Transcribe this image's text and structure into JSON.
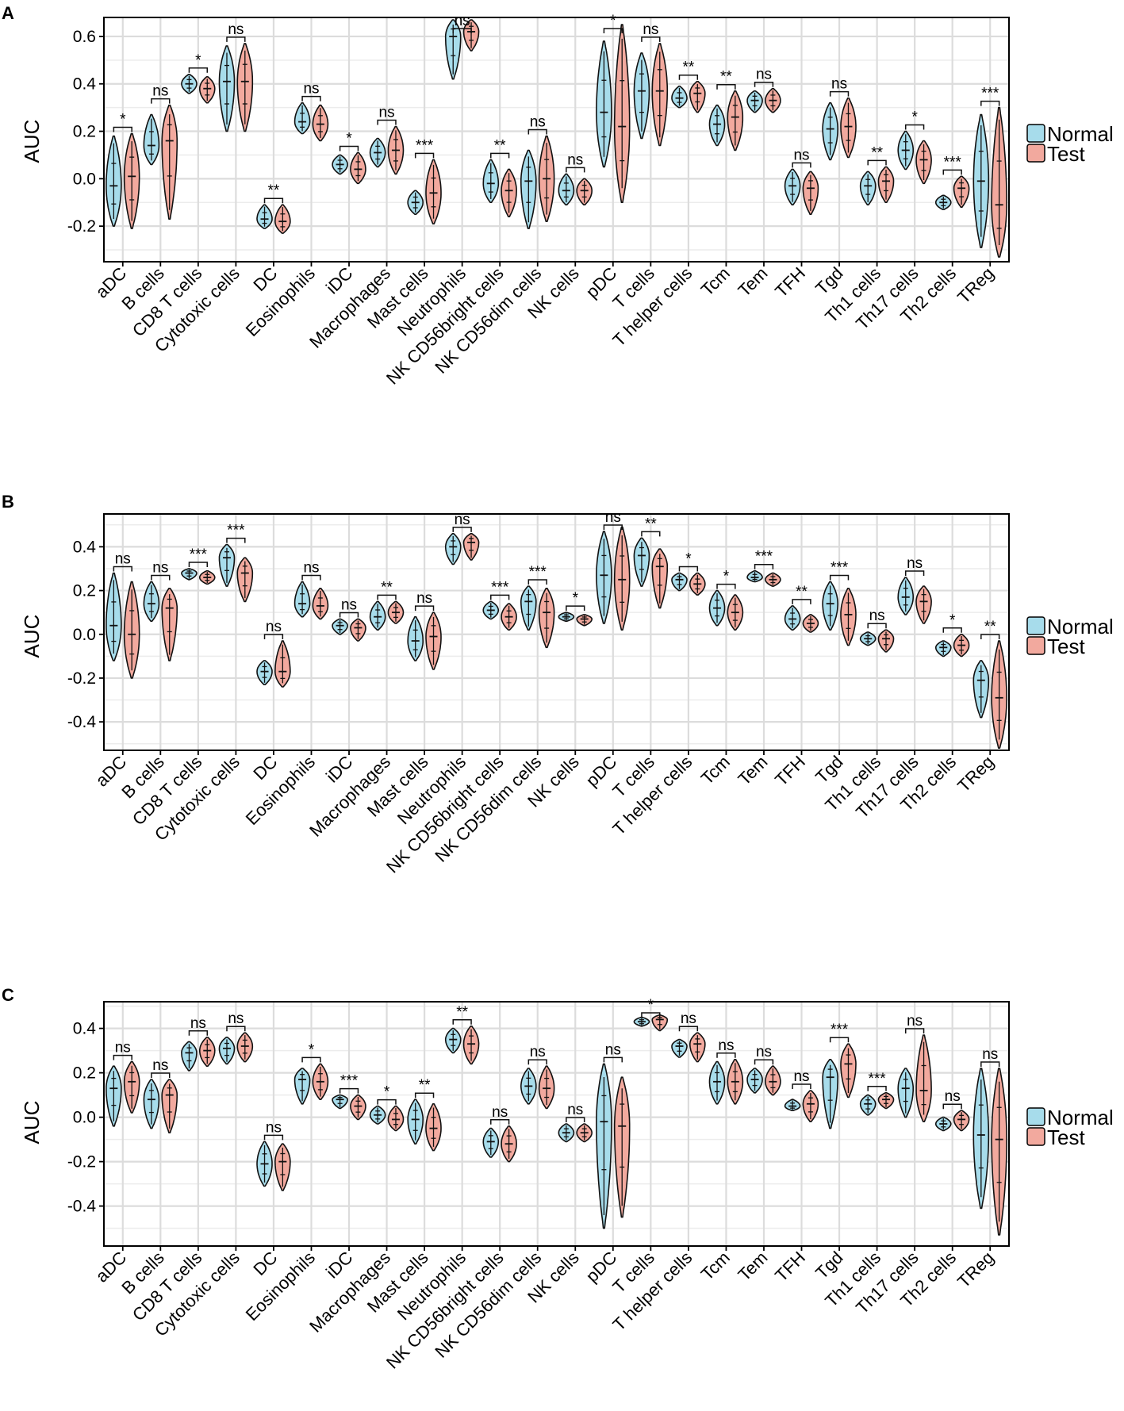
{
  "legend": {
    "items": [
      {
        "label": "Normal",
        "color": "#A7DCEB"
      },
      {
        "label": "Test",
        "color": "#F2A99E"
      }
    ]
  },
  "chart_data": [
    {
      "panel": "A",
      "type": "violin",
      "ylabel": "AUC",
      "ylim": [
        -0.35,
        0.68
      ],
      "yticks": [
        -0.2,
        0.0,
        0.2,
        0.4,
        0.6
      ],
      "ytick_labels": [
        "-0.2",
        "0.0",
        "0.2",
        "0.4",
        "0.6"
      ],
      "series_names": [
        "Normal",
        "Test"
      ],
      "categories": [
        "aDC",
        "B cells",
        "CD8 T cells",
        "Cytotoxic cells",
        "DC",
        "Eosinophils",
        "iDC",
        "Macrophages",
        "Mast cells",
        "Neutrophils",
        "NK CD56bright cells",
        "NK CD56dim cells",
        "NK cells",
        "pDC",
        "T cells",
        "T helper cells",
        "Tcm",
        "Tem",
        "TFH",
        "Tgd",
        "Th1 cells",
        "Th17 cells",
        "Th2 cells",
        "TReg"
      ],
      "normal_median": [
        -0.03,
        0.14,
        0.4,
        0.41,
        -0.17,
        0.24,
        0.06,
        0.11,
        -0.1,
        0.6,
        -0.02,
        -0.01,
        -0.05,
        0.28,
        0.37,
        0.34,
        0.23,
        0.33,
        -0.03,
        0.21,
        -0.03,
        0.12,
        -0.1,
        -0.01
      ],
      "normal_min": [
        -0.2,
        0.06,
        0.36,
        0.2,
        -0.21,
        0.19,
        0.02,
        0.05,
        -0.15,
        0.42,
        -0.1,
        -0.21,
        -0.11,
        0.05,
        0.17,
        0.3,
        0.14,
        0.28,
        -0.11,
        0.08,
        -0.11,
        0.04,
        -0.13,
        -0.29
      ],
      "normal_max": [
        0.18,
        0.27,
        0.44,
        0.56,
        -0.11,
        0.32,
        0.1,
        0.17,
        -0.05,
        0.67,
        0.08,
        0.12,
        0.02,
        0.58,
        0.53,
        0.39,
        0.31,
        0.37,
        0.04,
        0.32,
        0.03,
        0.2,
        -0.07,
        0.27
      ],
      "test_median": [
        0.01,
        0.16,
        0.38,
        0.41,
        -0.18,
        0.23,
        0.04,
        0.12,
        -0.06,
        0.62,
        -0.05,
        0.0,
        -0.05,
        0.22,
        0.37,
        0.36,
        0.26,
        0.33,
        -0.04,
        0.22,
        -0.01,
        0.08,
        -0.04,
        -0.11
      ],
      "test_min": [
        -0.21,
        -0.17,
        0.32,
        0.2,
        -0.23,
        0.16,
        -0.02,
        0.02,
        -0.19,
        0.54,
        -0.16,
        -0.18,
        -0.11,
        -0.1,
        0.14,
        0.28,
        0.12,
        0.28,
        -0.15,
        0.09,
        -0.1,
        -0.02,
        -0.12,
        -0.33
      ],
      "test_max": [
        0.19,
        0.31,
        0.43,
        0.57,
        -0.11,
        0.31,
        0.11,
        0.22,
        0.08,
        0.67,
        0.04,
        0.18,
        0.0,
        0.65,
        0.57,
        0.41,
        0.37,
        0.38,
        0.03,
        0.34,
        0.05,
        0.16,
        0.01,
        0.3
      ],
      "significance": [
        "*",
        "ns",
        "*",
        "ns",
        "**",
        "ns",
        "*",
        "ns",
        "***",
        "ns",
        "**",
        "ns",
        "ns",
        "*",
        "ns",
        "**",
        "**",
        "ns",
        "ns",
        "ns",
        "**",
        "*",
        "***",
        "***"
      ]
    },
    {
      "panel": "B",
      "type": "violin",
      "ylabel": "AUC",
      "ylim": [
        -0.53,
        0.55
      ],
      "yticks": [
        -0.4,
        -0.2,
        0.0,
        0.2,
        0.4
      ],
      "ytick_labels": [
        "-0.4",
        "-0.2",
        "0.0",
        "0.2",
        "0.4"
      ],
      "series_names": [
        "Normal",
        "Test"
      ],
      "categories": [
        "aDC",
        "B cells",
        "CD8 T cells",
        "Cytotoxic cells",
        "DC",
        "Eosinophils",
        "iDC",
        "Macrophages",
        "Mast cells",
        "Neutrophils",
        "NK CD56bright cells",
        "NK CD56dim cells",
        "NK cells",
        "pDC",
        "T cells",
        "T helper cells",
        "Tcm",
        "Tem",
        "TFH",
        "Tgd",
        "Th1 cells",
        "Th17 cells",
        "Th2 cells",
        "TReg"
      ],
      "normal_median": [
        0.04,
        0.14,
        0.28,
        0.35,
        -0.17,
        0.14,
        0.04,
        0.08,
        -0.03,
        0.4,
        0.11,
        0.15,
        0.08,
        0.27,
        0.36,
        0.25,
        0.12,
        0.26,
        0.07,
        0.14,
        -0.02,
        0.17,
        -0.06,
        -0.21
      ],
      "normal_min": [
        -0.12,
        0.06,
        0.25,
        0.22,
        -0.23,
        0.08,
        0.0,
        0.02,
        -0.12,
        0.32,
        0.07,
        0.02,
        0.06,
        0.05,
        0.22,
        0.2,
        0.04,
        0.24,
        0.02,
        0.02,
        -0.05,
        0.09,
        -0.1,
        -0.38
      ],
      "normal_max": [
        0.28,
        0.24,
        0.3,
        0.41,
        -0.12,
        0.24,
        0.07,
        0.15,
        0.08,
        0.46,
        0.15,
        0.22,
        0.1,
        0.47,
        0.44,
        0.28,
        0.2,
        0.29,
        0.13,
        0.24,
        0.01,
        0.26,
        -0.03,
        -0.12
      ],
      "test_median": [
        0.0,
        0.12,
        0.26,
        0.28,
        -0.17,
        0.13,
        0.03,
        0.1,
        -0.01,
        0.42,
        0.08,
        0.1,
        0.07,
        0.25,
        0.31,
        0.23,
        0.1,
        0.25,
        0.05,
        0.09,
        -0.02,
        0.15,
        -0.05,
        -0.29
      ],
      "test_min": [
        -0.2,
        -0.12,
        0.23,
        0.15,
        -0.24,
        0.07,
        -0.03,
        0.05,
        -0.16,
        0.34,
        0.02,
        -0.06,
        0.04,
        0.02,
        0.12,
        0.18,
        0.02,
        0.22,
        0.01,
        -0.05,
        -0.08,
        0.05,
        -0.1,
        -0.52
      ],
      "test_max": [
        0.24,
        0.21,
        0.29,
        0.35,
        -0.03,
        0.21,
        0.07,
        0.15,
        0.1,
        0.46,
        0.14,
        0.21,
        0.09,
        0.49,
        0.39,
        0.28,
        0.18,
        0.28,
        0.09,
        0.21,
        0.02,
        0.22,
        0.0,
        -0.03
      ],
      "significance": [
        "ns",
        "ns",
        "***",
        "***",
        "ns",
        "ns",
        "ns",
        "**",
        "ns",
        "ns",
        "***",
        "***",
        "*",
        "ns",
        "**",
        "*",
        "*",
        "***",
        "**",
        "***",
        "ns",
        "ns",
        "*",
        "**"
      ]
    },
    {
      "panel": "C",
      "type": "violin",
      "ylabel": "AUC",
      "ylim": [
        -0.58,
        0.52
      ],
      "yticks": [
        -0.4,
        -0.2,
        0.0,
        0.2,
        0.4
      ],
      "ytick_labels": [
        "-0.4",
        "-0.2",
        "0.0",
        "0.2",
        "0.4"
      ],
      "series_names": [
        "Normal",
        "Test"
      ],
      "categories": [
        "aDC",
        "B cells",
        "CD8 T cells",
        "Cytotoxic cells",
        "DC",
        "Eosinophils",
        "iDC",
        "Macrophages",
        "Mast cells",
        "Neutrophils",
        "NK CD56bright cells",
        "NK CD56dim cells",
        "NK cells",
        "pDC",
        "T cells",
        "T helper cells",
        "Tcm",
        "Tem",
        "TFH",
        "Tgd",
        "Th1 cells",
        "Th17 cells",
        "Th2 cells",
        "TReg"
      ],
      "normal_median": [
        0.13,
        0.08,
        0.29,
        0.31,
        -0.21,
        0.17,
        0.08,
        0.01,
        -0.01,
        0.35,
        -0.11,
        0.14,
        -0.07,
        -0.02,
        0.43,
        0.32,
        0.16,
        0.17,
        0.05,
        0.18,
        0.06,
        0.13,
        -0.03,
        -0.08
      ],
      "normal_min": [
        -0.04,
        -0.05,
        0.21,
        0.24,
        -0.31,
        0.06,
        0.04,
        -0.03,
        -0.12,
        0.29,
        -0.18,
        0.06,
        -0.11,
        -0.5,
        0.41,
        0.27,
        0.06,
        0.11,
        0.03,
        -0.05,
        0.01,
        0.0,
        -0.06,
        -0.41
      ],
      "normal_max": [
        0.23,
        0.17,
        0.34,
        0.36,
        -0.11,
        0.22,
        0.1,
        0.05,
        0.08,
        0.4,
        -0.05,
        0.22,
        -0.03,
        0.24,
        0.45,
        0.35,
        0.25,
        0.22,
        0.08,
        0.26,
        0.1,
        0.22,
        0.0,
        0.22
      ],
      "test_median": [
        0.16,
        0.1,
        0.3,
        0.32,
        -0.2,
        0.16,
        0.05,
        -0.01,
        -0.05,
        0.33,
        -0.12,
        0.13,
        -0.07,
        -0.04,
        0.44,
        0.33,
        0.16,
        0.16,
        0.06,
        0.24,
        0.08,
        0.12,
        -0.01,
        -0.1
      ],
      "test_min": [
        0.02,
        -0.07,
        0.23,
        0.25,
        -0.33,
        0.08,
        -0.01,
        -0.06,
        -0.15,
        0.24,
        -0.2,
        0.04,
        -0.11,
        -0.45,
        0.39,
        0.25,
        0.06,
        0.1,
        -0.02,
        0.09,
        0.04,
        -0.02,
        -0.06,
        -0.53
      ],
      "test_max": [
        0.25,
        0.17,
        0.36,
        0.38,
        -0.12,
        0.24,
        0.1,
        0.05,
        0.06,
        0.41,
        -0.04,
        0.23,
        -0.03,
        0.18,
        0.46,
        0.38,
        0.26,
        0.23,
        0.12,
        0.33,
        0.11,
        0.37,
        0.03,
        0.22
      ],
      "significance": [
        "ns",
        "ns",
        "ns",
        "ns",
        "ns",
        "*",
        "***",
        "*",
        "**",
        "**",
        "ns",
        "ns",
        "ns",
        "ns",
        "*",
        "ns",
        "ns",
        "ns",
        "ns",
        "***",
        "***",
        "ns",
        "ns",
        "ns"
      ]
    }
  ]
}
